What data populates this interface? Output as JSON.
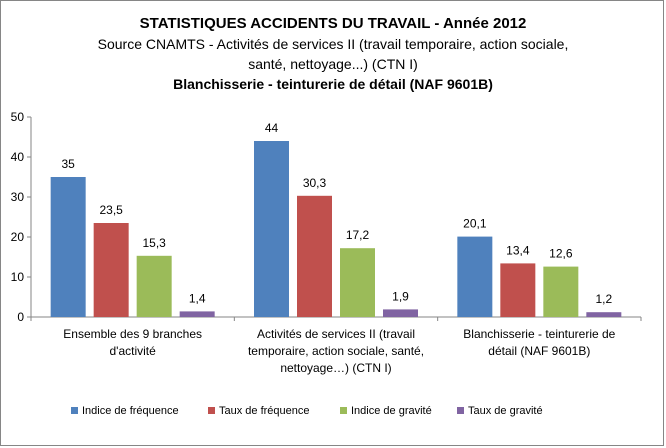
{
  "chart_data": {
    "type": "bar",
    "title": "STATISTIQUES ACCIDENTS DU TRAVAIL - Année 2012",
    "subtitle_lines": [
      "Source CNAMTS -    Activités de services II (travail temporaire, action sociale,",
      "santé, nettoyage...) (CTN I)",
      "Blanchisserie - teinturerie de détail  (NAF 9601B)"
    ],
    "categories": [
      [
        "Ensemble des 9 branches",
        "d'activité"
      ],
      [
        "Activités de services II (travail",
        "temporaire, action sociale, santé,",
        "nettoyage…) (CTN I)"
      ],
      [
        "Blanchisserie - teinturerie de",
        "détail (NAF 9601B)"
      ]
    ],
    "series": [
      {
        "name": "Indice de fréquence",
        "color": "#4f81bd",
        "values": [
          35,
          44,
          20.1
        ],
        "labels": [
          "35",
          "44",
          "20,1"
        ]
      },
      {
        "name": "Taux de fréquence",
        "color": "#c0504d",
        "values": [
          23.5,
          30.3,
          13.4
        ],
        "labels": [
          "23,5",
          "30,3",
          "13,4"
        ]
      },
      {
        "name": "Indice de gravité",
        "color": "#9bbb59",
        "values": [
          15.3,
          17.2,
          12.6
        ],
        "labels": [
          "15,3",
          "17,2",
          "12,6"
        ]
      },
      {
        "name": "Taux de gravité",
        "color": "#8064a2",
        "values": [
          1.4,
          1.9,
          1.2
        ],
        "labels": [
          "1,4",
          "1,9",
          "1,2"
        ]
      }
    ],
    "ylim": [
      0,
      50
    ],
    "yticks": [
      "0",
      "10",
      "20",
      "30",
      "40",
      "50"
    ],
    "grid": false,
    "legend": "bottom"
  }
}
